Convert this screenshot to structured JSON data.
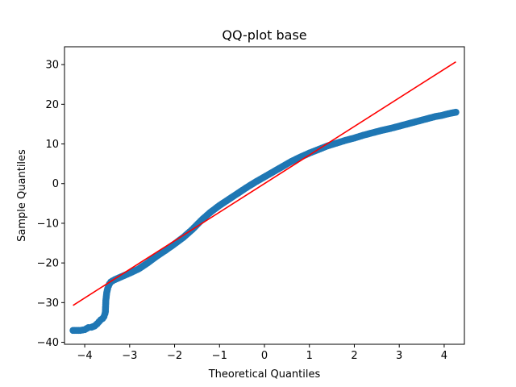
{
  "chart_data": {
    "type": "scatter",
    "title": "QQ-plot base",
    "xlabel": "Theoretical Quantiles",
    "ylabel": "Sample Quantiles",
    "xlim": [
      -4.45,
      4.45
    ],
    "ylim": [
      -40.5,
      34.5
    ],
    "xticks": [
      -4,
      -3,
      -2,
      -1,
      0,
      1,
      2,
      3,
      4
    ],
    "yticks": [
      -40,
      -30,
      -20,
      -10,
      0,
      10,
      20,
      30
    ],
    "grid": false,
    "colors": {
      "points": "#1f77b4",
      "line": "#ff0000",
      "axes": "#000000"
    },
    "series": [
      {
        "type": "scatter",
        "x": [
          -4.26,
          -4.1,
          -4.0,
          -3.92,
          -3.85,
          -3.78,
          -3.72,
          -3.68,
          -3.64,
          -3.6,
          -3.57,
          -3.55,
          -3.54,
          -3.53,
          -3.52,
          -3.51,
          -3.49,
          -3.47,
          -3.45,
          -3.42,
          -3.38,
          -3.33,
          -3.25,
          -3.15,
          -3.05,
          -2.95,
          -2.8,
          -2.6,
          -2.4,
          -2.2,
          -2.0,
          -1.8,
          -1.6,
          -1.4,
          -1.2,
          -1.0,
          -0.8,
          -0.6,
          -0.4,
          -0.2,
          0.0,
          0.2,
          0.4,
          0.6,
          0.8,
          1.0,
          1.2,
          1.4,
          1.6,
          1.8,
          2.0,
          2.2,
          2.4,
          2.6,
          2.8,
          3.0,
          3.2,
          3.4,
          3.6,
          3.8,
          3.95,
          4.08,
          4.26
        ],
        "y": [
          -37.0,
          -37.0,
          -36.8,
          -36.3,
          -36.2,
          -35.9,
          -35.3,
          -34.8,
          -34.3,
          -34.0,
          -33.5,
          -32.8,
          -32.3,
          -29.5,
          -28.5,
          -27.5,
          -26.5,
          -25.8,
          -25.3,
          -24.8,
          -24.5,
          -24.2,
          -23.8,
          -23.3,
          -22.8,
          -22.3,
          -21.5,
          -20.0,
          -18.3,
          -16.8,
          -15.2,
          -13.5,
          -11.5,
          -9.2,
          -7.2,
          -5.5,
          -4.0,
          -2.5,
          -1.0,
          0.4,
          1.7,
          3.0,
          4.3,
          5.6,
          6.7,
          7.7,
          8.6,
          9.5,
          10.2,
          10.9,
          11.5,
          12.2,
          12.8,
          13.4,
          13.9,
          14.5,
          15.1,
          15.7,
          16.3,
          16.9,
          17.2,
          17.6,
          18.0
        ]
      },
      {
        "type": "line",
        "x": [
          -4.26,
          4.26
        ],
        "y": [
          -30.7,
          30.7
        ]
      }
    ]
  }
}
